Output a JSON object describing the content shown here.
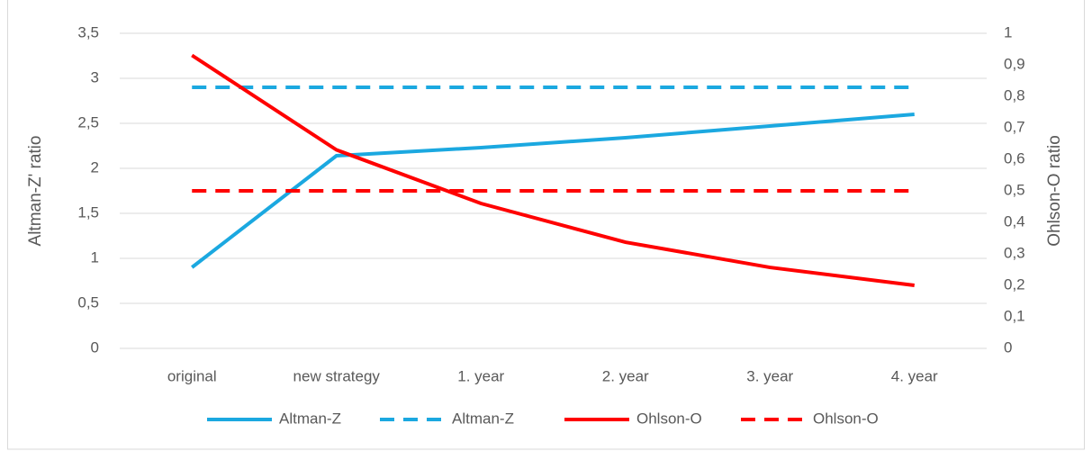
{
  "chart_data": {
    "type": "line",
    "y_label": "Altman-Z' ratio",
    "y2_label": "Ohlson-O ratio",
    "categories": [
      "original",
      "new strategy",
      "1. year",
      "2. year",
      "3. year",
      "4. year"
    ],
    "series": [
      {
        "name": "Altman-Z",
        "color": "#1ba8e0",
        "dash": false,
        "values": [
          0.9,
          2.14,
          2.23,
          2.34,
          2.47,
          2.6
        ]
      },
      {
        "name": "Altman-Z",
        "color": "#1ba8e0",
        "dash": true,
        "values": [
          2.9,
          2.9,
          2.9,
          2.9,
          2.9,
          2.9
        ]
      },
      {
        "name": "Ohlson-O",
        "color": "#ff0000",
        "dash": false,
        "axis": "y2",
        "values": [
          0.93,
          0.63,
          0.46,
          0.337,
          0.257,
          0.2
        ]
      },
      {
        "name": "Ohlson-O",
        "color": "#ff0000",
        "dash": true,
        "axis": "y2",
        "values": [
          0.5,
          0.5,
          0.5,
          0.5,
          0.5,
          0.5
        ]
      }
    ],
    "ylim": [
      0,
      3.5
    ],
    "yticks": [
      0,
      {
        "value": 0.5,
        "label": "0,5"
      },
      1,
      {
        "value": 1.5,
        "label": "1,5"
      },
      2,
      {
        "value": 2.5,
        "label": "2,5"
      },
      3,
      {
        "value": 3.5,
        "label": "3,5"
      }
    ],
    "y2lim": [
      0,
      1
    ],
    "y2ticks": [
      0,
      {
        "value": 0.1,
        "label": "0,1"
      },
      {
        "value": 0.2,
        "label": "0,2"
      },
      {
        "value": 0.3,
        "label": "0,3"
      },
      {
        "value": 0.4,
        "label": "0,4"
      },
      {
        "value": 0.5,
        "label": "0,5"
      },
      {
        "value": 0.6,
        "label": "0,6"
      },
      {
        "value": 0.7,
        "label": "0,7"
      },
      {
        "value": 0.8,
        "label": "0,8"
      },
      {
        "value": 0.9,
        "label": "0,9"
      },
      1
    ],
    "grid": true,
    "legend": "bottom"
  }
}
